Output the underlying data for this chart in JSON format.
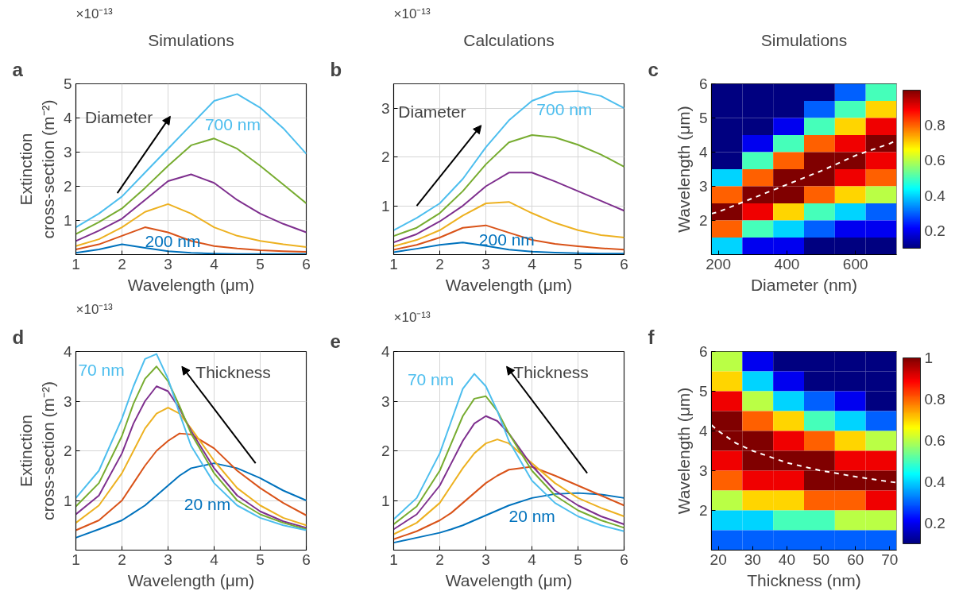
{
  "chart_data": [
    {
      "type": "line",
      "title": "Simulations",
      "ylabel": "Extinction\ncross-section (m⁻²)",
      "xlabel": "Wavelength (μm)",
      "annotations": [
        "a",
        "×10⁻¹³",
        "Diameter"
      ],
      "x": [
        1,
        1.5,
        2,
        2.5,
        3,
        3.5,
        4,
        4.5,
        5,
        5.5,
        6
      ],
      "xlim": [
        1,
        6
      ],
      "xticks": [
        1,
        2,
        3,
        4,
        5,
        6
      ],
      "ylim": [
        0,
        5
      ],
      "yticks": [
        1,
        2,
        3,
        4,
        5
      ],
      "grid": true,
      "series": [
        {
          "name": "200 nm",
          "color": "#0072bd",
          "values": [
            0.05,
            0.15,
            0.3,
            0.2,
            0.1,
            0.05,
            0.03,
            0.02,
            0.02,
            0.02,
            0.02
          ]
        },
        {
          "color": "#d95319",
          "values": [
            0.15,
            0.3,
            0.55,
            0.8,
            0.65,
            0.4,
            0.25,
            0.18,
            0.13,
            0.1,
            0.08
          ]
        },
        {
          "color": "#edb120",
          "values": [
            0.25,
            0.45,
            0.8,
            1.25,
            1.48,
            1.2,
            0.8,
            0.55,
            0.4,
            0.3,
            0.22
          ]
        },
        {
          "color": "#7e2f8e",
          "values": [
            0.4,
            0.7,
            1.05,
            1.6,
            2.15,
            2.35,
            2.1,
            1.6,
            1.2,
            0.9,
            0.65
          ]
        },
        {
          "color": "#77ac30",
          "values": [
            0.6,
            0.95,
            1.35,
            1.95,
            2.6,
            3.2,
            3.4,
            3.1,
            2.6,
            2.05,
            1.5
          ]
        },
        {
          "name": "700 nm",
          "color": "#4dbeee",
          "values": [
            0.8,
            1.2,
            1.7,
            2.4,
            3.1,
            3.8,
            4.5,
            4.7,
            4.3,
            3.7,
            2.95
          ]
        }
      ]
    },
    {
      "type": "line",
      "title": "Calculations",
      "xlabel": "Wavelength (μm)",
      "annotations": [
        "b",
        "×10⁻¹³",
        "Diameter"
      ],
      "x": [
        1,
        1.5,
        2,
        2.5,
        3,
        3.5,
        4,
        4.5,
        5,
        5.5,
        6
      ],
      "xlim": [
        1,
        6
      ],
      "xticks": [
        1,
        2,
        3,
        4,
        5,
        6
      ],
      "ylim": [
        0,
        3.5
      ],
      "yticks": [
        1,
        2,
        3
      ],
      "grid": true,
      "series": [
        {
          "name": "200 nm",
          "color": "#0072bd",
          "values": [
            0.05,
            0.12,
            0.2,
            0.25,
            0.18,
            0.1,
            0.06,
            0.04,
            0.03,
            0.02,
            0.02
          ]
        },
        {
          "color": "#d95319",
          "values": [
            0.1,
            0.2,
            0.35,
            0.55,
            0.6,
            0.45,
            0.3,
            0.22,
            0.17,
            0.13,
            0.1
          ]
        },
        {
          "color": "#edb120",
          "values": [
            0.17,
            0.3,
            0.5,
            0.8,
            1.05,
            1.08,
            0.85,
            0.65,
            0.5,
            0.4,
            0.35
          ]
        },
        {
          "color": "#7e2f8e",
          "values": [
            0.25,
            0.42,
            0.68,
            1.0,
            1.4,
            1.68,
            1.68,
            1.5,
            1.3,
            1.1,
            0.9
          ]
        },
        {
          "color": "#77ac30",
          "values": [
            0.38,
            0.55,
            0.85,
            1.3,
            1.85,
            2.3,
            2.45,
            2.4,
            2.25,
            2.05,
            1.8
          ]
        },
        {
          "name": "700 nm",
          "color": "#4dbeee",
          "values": [
            0.5,
            0.75,
            1.05,
            1.55,
            2.2,
            2.75,
            3.15,
            3.33,
            3.35,
            3.25,
            3.0
          ]
        }
      ]
    },
    {
      "type": "heatmap",
      "title": "Simulations",
      "xlabel": "Diameter (nm)",
      "ylabel": "Wavelength (μm)",
      "annotations": [
        "c"
      ],
      "x": [
        225,
        315,
        405,
        495,
        585,
        675
      ],
      "y": [
        5.75,
        5.25,
        4.75,
        4.25,
        3.75,
        3.25,
        2.75,
        2.25,
        1.75,
        1.25
      ],
      "xlim": [
        180,
        720
      ],
      "xticks": [
        200,
        400,
        600
      ],
      "ylim": [
        1,
        6
      ],
      "yticks": [
        2,
        3,
        4,
        5,
        6
      ],
      "clim": [
        0.1,
        1
      ],
      "cticks": [
        0.2,
        0.4,
        0.6,
        0.8
      ],
      "cells": [
        [
          0.1,
          0.1,
          0.1,
          0.1,
          0.3,
          0.5
        ],
        [
          0.1,
          0.1,
          0.1,
          0.3,
          0.5,
          0.7
        ],
        [
          0.1,
          0.1,
          0.2,
          0.5,
          0.7,
          0.9
        ],
        [
          0.1,
          0.2,
          0.5,
          0.8,
          0.9,
          1.0
        ],
        [
          0.1,
          0.5,
          0.8,
          1.0,
          1.0,
          0.9
        ],
        [
          0.4,
          0.8,
          1.0,
          1.0,
          0.9,
          0.8
        ],
        [
          0.8,
          1.0,
          1.0,
          0.8,
          0.7,
          0.6
        ],
        [
          1.0,
          0.9,
          0.7,
          0.5,
          0.4,
          0.3
        ],
        [
          0.8,
          0.5,
          0.4,
          0.3,
          0.2,
          0.2
        ],
        [
          0.4,
          0.2,
          0.2,
          0.1,
          0.1,
          0.1
        ]
      ],
      "series": [
        {
          "type": "line",
          "color": "#ffffff",
          "line_style": "dashed",
          "x": [
            180,
            200,
            300,
            400,
            500,
            600,
            700,
            720
          ],
          "values": [
            2.2,
            2.25,
            2.65,
            3.05,
            3.45,
            3.9,
            4.25,
            4.35
          ]
        }
      ]
    },
    {
      "type": "line",
      "ylabel": "Extinction\ncross-section (m⁻²)",
      "xlabel": "Wavelength (μm)",
      "annotations": [
        "d",
        "×10⁻¹³",
        "Thickness"
      ],
      "x": [
        1,
        1.5,
        2,
        2.25,
        2.5,
        2.75,
        3,
        3.25,
        3.5,
        4,
        4.5,
        5,
        5.5,
        6
      ],
      "xlim": [
        1,
        6
      ],
      "xticks": [
        1,
        2,
        3,
        4,
        5,
        6
      ],
      "ylim": [
        0,
        4
      ],
      "yticks": [
        1,
        2,
        3,
        4
      ],
      "grid": true,
      "series": [
        {
          "name": "20 nm",
          "color": "#0072bd",
          "values": [
            0.25,
            0.42,
            0.6,
            0.75,
            0.9,
            1.1,
            1.3,
            1.5,
            1.65,
            1.75,
            1.65,
            1.45,
            1.2,
            1.0
          ]
        },
        {
          "color": "#d95319",
          "values": [
            0.4,
            0.6,
            1.0,
            1.35,
            1.7,
            2.0,
            2.2,
            2.35,
            2.33,
            2.05,
            1.6,
            1.25,
            0.95,
            0.7
          ]
        },
        {
          "color": "#edb120",
          "values": [
            0.55,
            0.9,
            1.55,
            2.0,
            2.45,
            2.75,
            2.87,
            2.75,
            2.45,
            1.8,
            1.25,
            0.9,
            0.65,
            0.5
          ]
        },
        {
          "color": "#7e2f8e",
          "values": [
            0.72,
            1.1,
            1.95,
            2.55,
            3.0,
            3.3,
            3.2,
            2.85,
            2.4,
            1.65,
            1.1,
            0.78,
            0.58,
            0.45
          ]
        },
        {
          "color": "#77ac30",
          "values": [
            0.88,
            1.35,
            2.3,
            2.95,
            3.45,
            3.7,
            3.4,
            2.9,
            2.35,
            1.55,
            1.0,
            0.72,
            0.55,
            0.42
          ]
        },
        {
          "name": "70 nm",
          "color": "#4dbeee",
          "values": [
            1.05,
            1.6,
            2.65,
            3.3,
            3.85,
            3.95,
            3.45,
            2.75,
            2.1,
            1.35,
            0.9,
            0.65,
            0.5,
            0.4
          ]
        }
      ]
    },
    {
      "type": "line",
      "xlabel": "Wavelength (μm)",
      "annotations": [
        "e",
        "×10⁻¹³",
        "Thickness"
      ],
      "x": [
        1,
        1.5,
        2,
        2.25,
        2.5,
        2.75,
        3,
        3.25,
        3.5,
        4,
        4.5,
        5,
        5.5,
        6
      ],
      "xlim": [
        1,
        6
      ],
      "xticks": [
        1,
        2,
        3,
        4,
        5,
        6
      ],
      "ylim": [
        0,
        4
      ],
      "yticks": [
        1,
        2,
        3,
        4
      ],
      "grid": true,
      "series": [
        {
          "name": "20 nm",
          "color": "#0072bd",
          "values": [
            0.15,
            0.25,
            0.35,
            0.42,
            0.5,
            0.6,
            0.7,
            0.8,
            0.9,
            1.05,
            1.13,
            1.15,
            1.12,
            1.05
          ]
        },
        {
          "color": "#d95319",
          "values": [
            0.22,
            0.38,
            0.6,
            0.75,
            0.95,
            1.15,
            1.35,
            1.5,
            1.62,
            1.68,
            1.5,
            1.3,
            1.1,
            0.9
          ]
        },
        {
          "color": "#edb120",
          "values": [
            0.32,
            0.55,
            0.95,
            1.3,
            1.65,
            1.95,
            2.15,
            2.23,
            2.15,
            1.75,
            1.35,
            1.05,
            0.85,
            0.68
          ]
        },
        {
          "color": "#7e2f8e",
          "values": [
            0.42,
            0.72,
            1.3,
            1.75,
            2.2,
            2.55,
            2.7,
            2.6,
            2.35,
            1.7,
            1.2,
            0.9,
            0.68,
            0.52
          ]
        },
        {
          "color": "#77ac30",
          "values": [
            0.52,
            0.88,
            1.6,
            2.15,
            2.7,
            3.05,
            3.1,
            2.8,
            2.35,
            1.6,
            1.1,
            0.8,
            0.6,
            0.45
          ]
        },
        {
          "name": "70 nm",
          "color": "#4dbeee",
          "values": [
            0.62,
            1.05,
            1.95,
            2.6,
            3.25,
            3.55,
            3.3,
            2.8,
            2.2,
            1.4,
            0.95,
            0.68,
            0.5,
            0.38
          ]
        }
      ]
    },
    {
      "type": "heatmap",
      "xlabel": "Thickness (nm)",
      "ylabel": "Wavelength (μm)",
      "annotations": [
        "f"
      ],
      "x": [
        22.5,
        31.5,
        40.5,
        49.5,
        58.5,
        67.5
      ],
      "y": [
        5.75,
        5.25,
        4.75,
        4.25,
        3.75,
        3.25,
        2.75,
        2.25,
        1.75,
        1.25
      ],
      "xlim": [
        18,
        72
      ],
      "xticks": [
        20,
        30,
        40,
        50,
        60,
        70
      ],
      "ylim": [
        1,
        6
      ],
      "yticks": [
        2,
        3,
        4,
        5,
        6
      ],
      "clim": [
        0.1,
        1
      ],
      "cticks": [
        0.2,
        0.4,
        0.6,
        0.8,
        1
      ],
      "cells": [
        [
          0.6,
          0.2,
          0.1,
          0.1,
          0.1,
          0.1
        ],
        [
          0.7,
          0.4,
          0.2,
          0.1,
          0.1,
          0.1
        ],
        [
          0.9,
          0.6,
          0.4,
          0.3,
          0.2,
          0.1
        ],
        [
          1.0,
          0.8,
          0.7,
          0.5,
          0.4,
          0.3
        ],
        [
          1.0,
          1.0,
          0.9,
          0.8,
          0.7,
          0.6
        ],
        [
          0.9,
          1.0,
          1.0,
          1.0,
          0.9,
          0.9
        ],
        [
          0.8,
          0.9,
          0.9,
          1.0,
          1.0,
          1.0
        ],
        [
          0.6,
          0.7,
          0.7,
          0.8,
          0.8,
          0.9
        ],
        [
          0.4,
          0.4,
          0.5,
          0.5,
          0.6,
          0.6
        ],
        [
          0.3,
          0.3,
          0.3,
          0.3,
          0.3,
          0.3
        ]
      ],
      "series": [
        {
          "type": "line",
          "color": "#ffffff",
          "line_style": "dashed",
          "x": [
            18,
            20,
            25,
            30,
            40,
            50,
            60,
            70,
            72
          ],
          "values": [
            4.15,
            4.0,
            3.7,
            3.5,
            3.2,
            3.0,
            2.85,
            2.72,
            2.7
          ]
        }
      ]
    }
  ]
}
